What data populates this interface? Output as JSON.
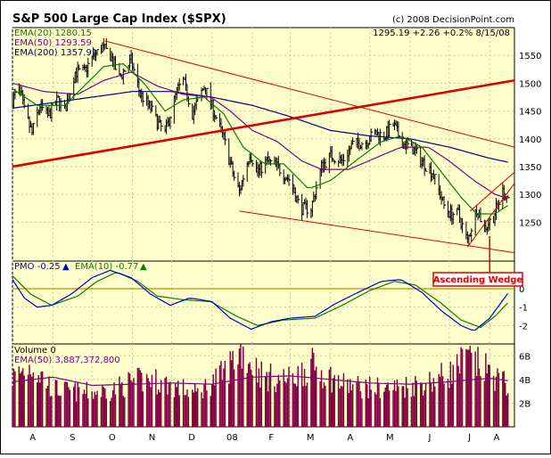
{
  "header": {
    "title": "S&P 500 Large Cap Index ($SPX)",
    "copyright": "(c) 2008 DecisionPoint.com",
    "quote": "1295.19  +2.26  +0.2%  8/15/08"
  },
  "colors": {
    "background": "#ffffcc",
    "price_bars": "#000000",
    "ema20": "#008000",
    "ema50": "#800080",
    "ema200": "#000080",
    "trendline": "#dd0000",
    "pmo": "#0000cc",
    "pmo_signal": "#008000",
    "volume_bars": "#800040",
    "zero_line": "#cc8800"
  },
  "chart_data": [
    {
      "type": "line",
      "panel": "price",
      "ylim": [
        1180,
        1600
      ],
      "y_ticks": [
        "1550",
        "1500",
        "1450",
        "1400",
        "1350",
        "1300",
        "1250"
      ],
      "x_ticks": [
        "A",
        "S",
        "O",
        "N",
        "D",
        "08",
        "F",
        "M",
        "A",
        "M",
        "J",
        "J",
        "A"
      ],
      "legend": [
        {
          "label": "EMA(20) 1280.15"
        },
        {
          "label": "EMA(50) 1293.59"
        },
        {
          "label": "EMA(200) 1357.91"
        }
      ],
      "annotation": "Ascending Wedge",
      "x_start_date": "2007-08-01",
      "x_end_date": "2008-08-20",
      "price_keypoints": [
        [
          "2007-08-01",
          1470
        ],
        [
          "2007-08-06",
          1490
        ],
        [
          "2007-08-10",
          1450
        ],
        [
          "2007-08-16",
          1410
        ],
        [
          "2007-08-22",
          1460
        ],
        [
          "2007-08-28",
          1440
        ],
        [
          "2007-09-05",
          1470
        ],
        [
          "2007-09-10",
          1450
        ],
        [
          "2007-09-18",
          1520
        ],
        [
          "2007-09-25",
          1520
        ],
        [
          "2007-10-01",
          1545
        ],
        [
          "2007-10-09",
          1565
        ],
        [
          "2007-10-15",
          1550
        ],
        [
          "2007-10-22",
          1510
        ],
        [
          "2007-10-31",
          1540
        ],
        [
          "2007-11-07",
          1480
        ],
        [
          "2007-11-15",
          1455
        ],
        [
          "2007-11-20",
          1430
        ],
        [
          "2007-11-26",
          1410
        ],
        [
          "2007-12-05",
          1485
        ],
        [
          "2007-12-10",
          1505
        ],
        [
          "2007-12-17",
          1445
        ],
        [
          "2007-12-26",
          1495
        ],
        [
          "2008-01-03",
          1445
        ],
        [
          "2008-01-10",
          1400
        ],
        [
          "2008-01-18",
          1330
        ],
        [
          "2008-01-22",
          1305
        ],
        [
          "2008-01-30",
          1375
        ],
        [
          "2008-02-05",
          1340
        ],
        [
          "2008-02-12",
          1360
        ],
        [
          "2008-02-20",
          1350
        ],
        [
          "2008-03-01",
          1325
        ],
        [
          "2008-03-07",
          1285
        ],
        [
          "2008-03-10",
          1275
        ],
        [
          "2008-03-17",
          1275
        ],
        [
          "2008-03-25",
          1350
        ],
        [
          "2008-04-01",
          1370
        ],
        [
          "2008-04-10",
          1360
        ],
        [
          "2008-04-18",
          1390
        ],
        [
          "2008-04-28",
          1395
        ],
        [
          "2008-05-05",
          1410
        ],
        [
          "2008-05-12",
          1405
        ],
        [
          "2008-05-19",
          1425
        ],
        [
          "2008-05-27",
          1390
        ],
        [
          "2008-06-02",
          1385
        ],
        [
          "2008-06-10",
          1360
        ],
        [
          "2008-06-18",
          1340
        ],
        [
          "2008-06-27",
          1280
        ],
        [
          "2008-07-02",
          1265
        ],
        [
          "2008-07-08",
          1265
        ],
        [
          "2008-07-15",
          1215
        ],
        [
          "2008-07-22",
          1275
        ],
        [
          "2008-07-28",
          1240
        ],
        [
          "2008-08-04",
          1260
        ],
        [
          "2008-08-11",
          1305
        ],
        [
          "2008-08-15",
          1295
        ]
      ],
      "ema20_keypoints": [
        [
          "2007-08-01",
          1490
        ],
        [
          "2007-08-20",
          1460
        ],
        [
          "2007-09-10",
          1460
        ],
        [
          "2007-09-25",
          1495
        ],
        [
          "2007-10-10",
          1530
        ],
        [
          "2007-10-25",
          1535
        ],
        [
          "2007-11-10",
          1500
        ],
        [
          "2007-11-26",
          1450
        ],
        [
          "2007-12-10",
          1470
        ],
        [
          "2007-12-26",
          1475
        ],
        [
          "2008-01-10",
          1445
        ],
        [
          "2008-01-25",
          1385
        ],
        [
          "2008-02-10",
          1355
        ],
        [
          "2008-02-25",
          1355
        ],
        [
          "2008-03-15",
          1310
        ],
        [
          "2008-04-01",
          1325
        ],
        [
          "2008-04-20",
          1360
        ],
        [
          "2008-05-10",
          1395
        ],
        [
          "2008-05-25",
          1405
        ],
        [
          "2008-06-10",
          1385
        ],
        [
          "2008-06-25",
          1340
        ],
        [
          "2008-07-10",
          1295
        ],
        [
          "2008-07-22",
          1265
        ],
        [
          "2008-08-05",
          1265
        ],
        [
          "2008-08-15",
          1280
        ]
      ],
      "ema50_keypoints": [
        [
          "2007-08-01",
          1500
        ],
        [
          "2007-08-25",
          1485
        ],
        [
          "2007-09-20",
          1480
        ],
        [
          "2007-10-10",
          1505
        ],
        [
          "2007-10-31",
          1520
        ],
        [
          "2007-11-20",
          1495
        ],
        [
          "2007-12-10",
          1480
        ],
        [
          "2007-12-31",
          1475
        ],
        [
          "2008-01-15",
          1450
        ],
        [
          "2008-02-01",
          1415
        ],
        [
          "2008-02-20",
          1395
        ],
        [
          "2008-03-10",
          1360
        ],
        [
          "2008-03-25",
          1345
        ],
        [
          "2008-04-15",
          1345
        ],
        [
          "2008-05-05",
          1365
        ],
        [
          "2008-05-25",
          1385
        ],
        [
          "2008-06-15",
          1385
        ],
        [
          "2008-07-01",
          1360
        ],
        [
          "2008-07-20",
          1325
        ],
        [
          "2008-08-05",
          1300
        ],
        [
          "2008-08-15",
          1293
        ]
      ],
      "ema200_keypoints": [
        [
          "2007-08-01",
          1455
        ],
        [
          "2007-09-01",
          1465
        ],
        [
          "2007-10-01",
          1475
        ],
        [
          "2007-11-01",
          1485
        ],
        [
          "2007-12-01",
          1485
        ],
        [
          "2008-01-01",
          1475
        ],
        [
          "2008-02-01",
          1460
        ],
        [
          "2008-03-01",
          1440
        ],
        [
          "2008-04-01",
          1415
        ],
        [
          "2008-05-01",
          1405
        ],
        [
          "2008-06-01",
          1400
        ],
        [
          "2008-07-01",
          1385
        ],
        [
          "2008-08-01",
          1365
        ],
        [
          "2008-08-15",
          1358
        ]
      ],
      "trendlines": [
        {
          "from": [
            "2007-08-01",
            1350
          ],
          "to": [
            "2008-08-20",
            1505
          ],
          "emphasis": "bold"
        },
        {
          "from": [
            "2007-10-11",
            1576
          ],
          "to": [
            "2008-08-20",
            1385
          ]
        },
        {
          "from": [
            "2008-01-22",
            1270
          ],
          "to": [
            "2008-08-20",
            1195
          ]
        },
        {
          "from": [
            "2008-07-17",
            1270
          ],
          "to": [
            "2008-08-20",
            1340
          ]
        },
        {
          "from": [
            "2008-07-15",
            1205
          ],
          "to": [
            "2008-08-20",
            1320
          ]
        }
      ]
    },
    {
      "type": "line",
      "panel": "pmo",
      "ylim": [
        -3,
        1.5
      ],
      "y_ticks": [
        "0",
        "-1",
        "-2"
      ],
      "legend": [
        {
          "label": "PMO -0.25"
        },
        {
          "label": "EMA(10) -0.77"
        }
      ],
      "pmo_keypoints": [
        [
          "2007-08-01",
          0.5
        ],
        [
          "2007-08-10",
          -0.5
        ],
        [
          "2007-08-20",
          -1.0
        ],
        [
          "2007-08-31",
          -0.9
        ],
        [
          "2007-09-15",
          -0.3
        ],
        [
          "2007-10-01",
          0.6
        ],
        [
          "2007-10-15",
          1.0
        ],
        [
          "2007-10-31",
          0.6
        ],
        [
          "2007-11-15",
          -0.3
        ],
        [
          "2007-11-30",
          -0.9
        ],
        [
          "2007-12-15",
          -0.5
        ],
        [
          "2008-01-01",
          -0.7
        ],
        [
          "2008-01-15",
          -1.6
        ],
        [
          "2008-01-31",
          -2.2
        ],
        [
          "2008-02-15",
          -1.8
        ],
        [
          "2008-03-01",
          -1.6
        ],
        [
          "2008-03-20",
          -1.5
        ],
        [
          "2008-04-05",
          -0.8
        ],
        [
          "2008-04-25",
          -0.1
        ],
        [
          "2008-05-10",
          0.4
        ],
        [
          "2008-05-25",
          0.5
        ],
        [
          "2008-06-10",
          -0.2
        ],
        [
          "2008-06-25",
          -1.2
        ],
        [
          "2008-07-10",
          -2.0
        ],
        [
          "2008-07-20",
          -2.3
        ],
        [
          "2008-08-01",
          -1.6
        ],
        [
          "2008-08-15",
          -0.25
        ]
      ],
      "ema10_keypoints": [
        [
          "2007-08-01",
          0.7
        ],
        [
          "2007-08-15",
          -0.3
        ],
        [
          "2007-08-31",
          -0.9
        ],
        [
          "2007-09-20",
          -0.4
        ],
        [
          "2007-10-05",
          0.4
        ],
        [
          "2007-10-20",
          0.9
        ],
        [
          "2007-11-05",
          0.4
        ],
        [
          "2007-11-20",
          -0.4
        ],
        [
          "2007-12-10",
          -0.6
        ],
        [
          "2007-12-31",
          -0.7
        ],
        [
          "2008-01-20",
          -1.5
        ],
        [
          "2008-02-05",
          -2.0
        ],
        [
          "2008-02-25",
          -1.7
        ],
        [
          "2008-03-20",
          -1.6
        ],
        [
          "2008-04-10",
          -0.9
        ],
        [
          "2008-05-01",
          -0.1
        ],
        [
          "2008-05-20",
          0.4
        ],
        [
          "2008-06-05",
          0.2
        ],
        [
          "2008-06-25",
          -0.8
        ],
        [
          "2008-07-10",
          -1.7
        ],
        [
          "2008-07-25",
          -2.1
        ],
        [
          "2008-08-05",
          -1.5
        ],
        [
          "2008-08-15",
          -0.77
        ]
      ]
    },
    {
      "type": "bar",
      "panel": "volume",
      "ylim": [
        0,
        7
      ],
      "y_ticks": [
        "6B",
        "4B",
        "2B"
      ],
      "legend": [
        {
          "label": "Volume 0"
        },
        {
          "label": "EMA(50) 3,887,372,800"
        }
      ],
      "volume_keypoints_billions": [
        [
          "2007-08-01",
          4.2
        ],
        [
          "2007-08-16",
          5.2
        ],
        [
          "2007-09-01",
          3.2
        ],
        [
          "2007-09-15",
          3.0
        ],
        [
          "2007-10-01",
          2.9
        ],
        [
          "2007-10-15",
          3.1
        ],
        [
          "2007-11-01",
          3.8
        ],
        [
          "2007-11-15",
          4.0
        ],
        [
          "2007-12-01",
          3.5
        ],
        [
          "2007-12-20",
          2.8
        ],
        [
          "2008-01-10",
          4.5
        ],
        [
          "2008-01-23",
          6.5
        ],
        [
          "2008-02-10",
          4.2
        ],
        [
          "2008-03-01",
          4.0
        ],
        [
          "2008-03-17",
          5.2
        ],
        [
          "2008-04-10",
          3.6
        ],
        [
          "2008-05-01",
          3.3
        ],
        [
          "2008-05-20",
          3.3
        ],
        [
          "2008-06-15",
          3.8
        ],
        [
          "2008-07-01",
          4.5
        ],
        [
          "2008-07-15",
          5.8
        ],
        [
          "2008-08-01",
          4.6
        ],
        [
          "2008-08-15",
          3.5
        ]
      ],
      "volume_ema50_keypoints_billions": [
        [
          "2007-08-01",
          3.8
        ],
        [
          "2007-09-01",
          4.2
        ],
        [
          "2007-10-01",
          3.5
        ],
        [
          "2007-11-01",
          3.6
        ],
        [
          "2007-12-01",
          3.7
        ],
        [
          "2008-01-01",
          3.6
        ],
        [
          "2008-02-01",
          4.2
        ],
        [
          "2008-03-01",
          4.3
        ],
        [
          "2008-04-01",
          4.0
        ],
        [
          "2008-05-01",
          3.7
        ],
        [
          "2008-06-01",
          3.6
        ],
        [
          "2008-07-01",
          3.8
        ],
        [
          "2008-08-01",
          4.1
        ],
        [
          "2008-08-15",
          3.9
        ]
      ]
    }
  ]
}
